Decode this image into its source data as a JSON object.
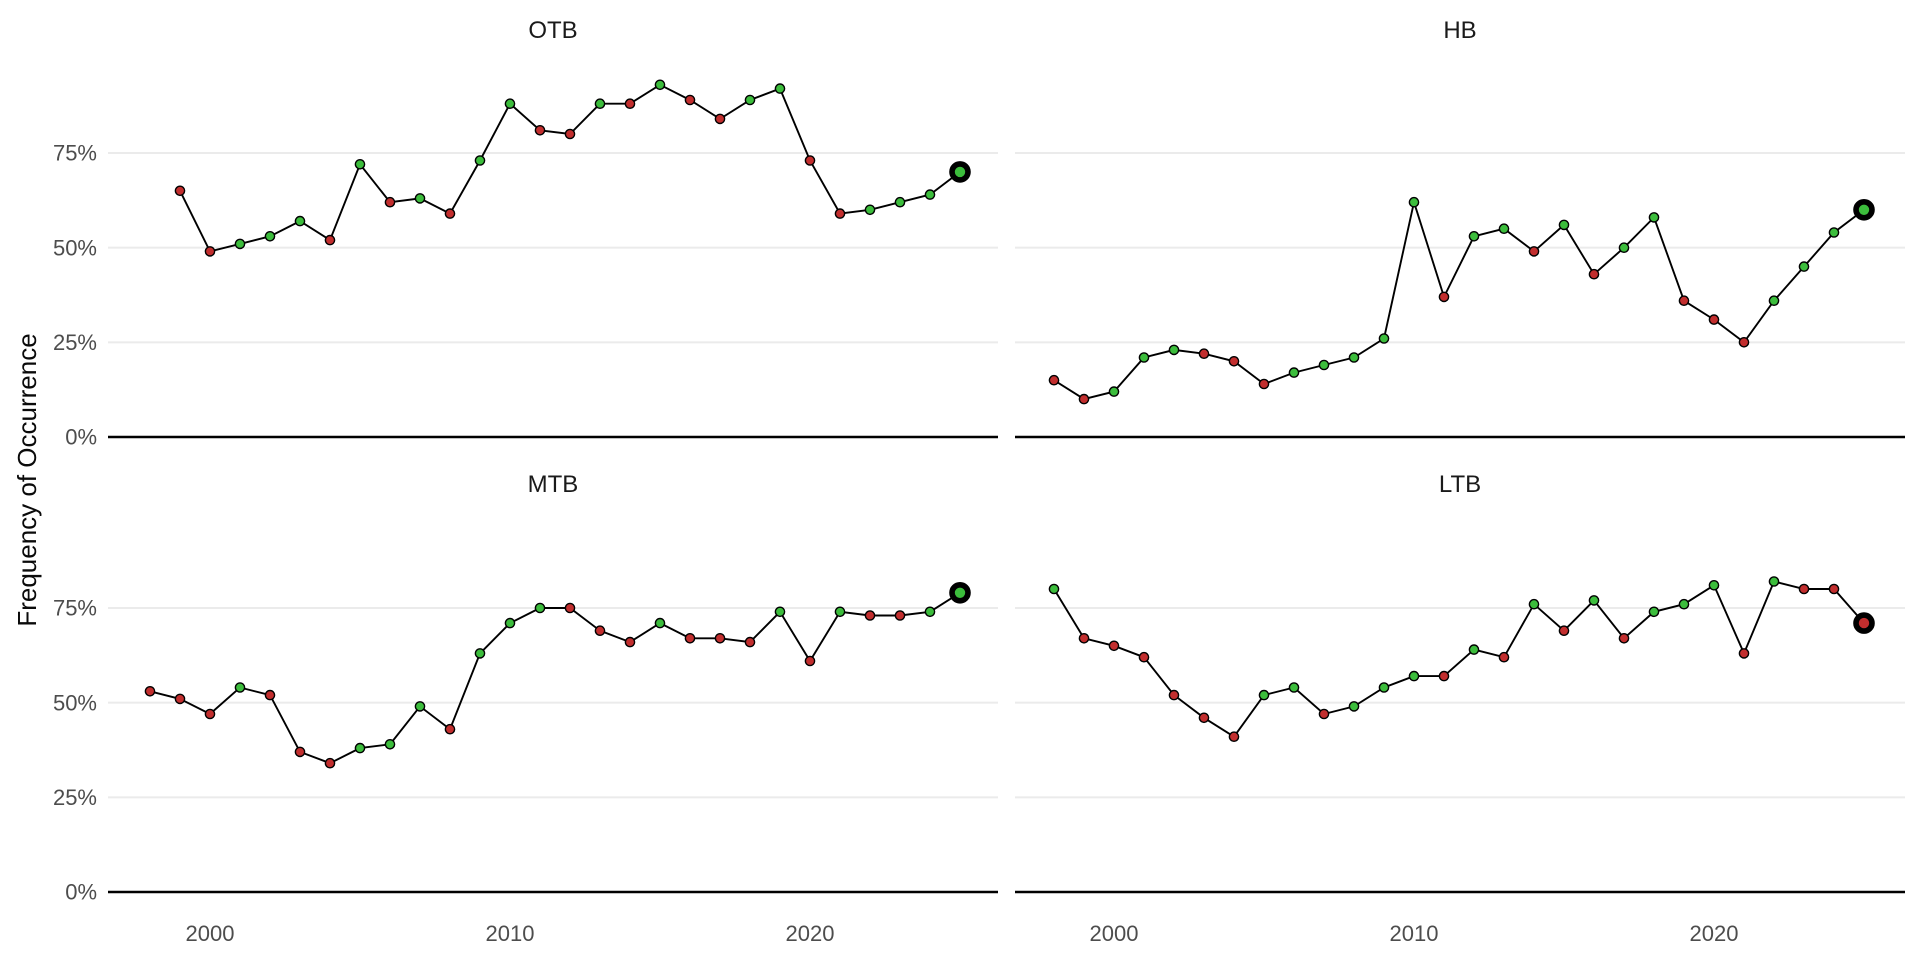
{
  "figure": {
    "ylabel": "Frequency of Occurrence",
    "y_tick_labels": [
      "0%",
      "25%",
      "50%",
      "75%"
    ],
    "x_tick_labels": [
      "2000",
      "2010",
      "2020"
    ],
    "colors": {
      "green": "#3CBD3C",
      "red": "#C22E2E",
      "line": "#000000",
      "grid": "#EBEBEB",
      "axis": "#000000",
      "point_outline": "#000000",
      "highlight_ring": "#000000",
      "tick_label": "#4D4D4D",
      "title": "#1A1A1A",
      "background": "#FFFFFF"
    },
    "legend": "none",
    "grid": "horizontal-major-only"
  },
  "chart_data": [
    {
      "type": "line",
      "title": "OTB",
      "xlabel": "",
      "ylabel": "Frequency of Occurrence",
      "x_ticks": [
        2000,
        2010,
        2020
      ],
      "y_ticks_pct": [
        0,
        25,
        50,
        75
      ],
      "ylim": [
        0,
        100
      ],
      "xlim": [
        1997,
        2026
      ],
      "highlight_last": true,
      "points": [
        [
          1999,
          65,
          "red"
        ],
        [
          2000,
          49,
          "red"
        ],
        [
          2001,
          51,
          "green"
        ],
        [
          2002,
          53,
          "green"
        ],
        [
          2003,
          57,
          "green"
        ],
        [
          2004,
          52,
          "red"
        ],
        [
          2005,
          72,
          "green"
        ],
        [
          2006,
          62,
          "red"
        ],
        [
          2007,
          63,
          "green"
        ],
        [
          2008,
          59,
          "red"
        ],
        [
          2009,
          73,
          "green"
        ],
        [
          2010,
          88,
          "green"
        ],
        [
          2011,
          81,
          "red"
        ],
        [
          2012,
          80,
          "red"
        ],
        [
          2013,
          88,
          "green"
        ],
        [
          2014,
          88,
          "red"
        ],
        [
          2015,
          93,
          "green"
        ],
        [
          2016,
          89,
          "red"
        ],
        [
          2017,
          84,
          "red"
        ],
        [
          2018,
          89,
          "green"
        ],
        [
          2019,
          92,
          "green"
        ],
        [
          2020,
          73,
          "red"
        ],
        [
          2021,
          59,
          "red"
        ],
        [
          2022,
          60,
          "green"
        ],
        [
          2023,
          62,
          "green"
        ],
        [
          2024,
          64,
          "green"
        ],
        [
          2025,
          70,
          "green"
        ]
      ]
    },
    {
      "type": "line",
      "title": "HB",
      "xlabel": "",
      "ylabel": "Frequency of Occurrence",
      "x_ticks": [
        2000,
        2010,
        2020
      ],
      "y_ticks_pct": [
        0,
        25,
        50,
        75
      ],
      "ylim": [
        0,
        100
      ],
      "xlim": [
        1997,
        2026
      ],
      "highlight_last": true,
      "points": [
        [
          1998,
          15,
          "red"
        ],
        [
          1999,
          10,
          "red"
        ],
        [
          2000,
          12,
          "green"
        ],
        [
          2001,
          21,
          "green"
        ],
        [
          2002,
          23,
          "green"
        ],
        [
          2003,
          22,
          "red"
        ],
        [
          2004,
          20,
          "red"
        ],
        [
          2005,
          14,
          "red"
        ],
        [
          2006,
          17,
          "green"
        ],
        [
          2007,
          19,
          "green"
        ],
        [
          2008,
          21,
          "green"
        ],
        [
          2009,
          26,
          "green"
        ],
        [
          2010,
          62,
          "green"
        ],
        [
          2011,
          37,
          "red"
        ],
        [
          2012,
          53,
          "green"
        ],
        [
          2013,
          55,
          "green"
        ],
        [
          2014,
          49,
          "red"
        ],
        [
          2015,
          56,
          "green"
        ],
        [
          2016,
          43,
          "red"
        ],
        [
          2017,
          50,
          "green"
        ],
        [
          2018,
          58,
          "green"
        ],
        [
          2019,
          36,
          "red"
        ],
        [
          2020,
          31,
          "red"
        ],
        [
          2021,
          25,
          "red"
        ],
        [
          2022,
          36,
          "green"
        ],
        [
          2023,
          45,
          "green"
        ],
        [
          2024,
          54,
          "green"
        ],
        [
          2025,
          60,
          "green"
        ]
      ]
    },
    {
      "type": "line",
      "title": "MTB",
      "xlabel": "",
      "ylabel": "Frequency of Occurrence",
      "x_ticks": [
        2000,
        2010,
        2020
      ],
      "y_ticks_pct": [
        0,
        25,
        50,
        75
      ],
      "ylim": [
        0,
        100
      ],
      "xlim": [
        1997,
        2026
      ],
      "highlight_last": true,
      "points": [
        [
          1998,
          53,
          "red"
        ],
        [
          1999,
          51,
          "red"
        ],
        [
          2000,
          47,
          "red"
        ],
        [
          2001,
          54,
          "green"
        ],
        [
          2002,
          52,
          "red"
        ],
        [
          2003,
          37,
          "red"
        ],
        [
          2004,
          34,
          "red"
        ],
        [
          2005,
          38,
          "green"
        ],
        [
          2006,
          39,
          "green"
        ],
        [
          2007,
          49,
          "green"
        ],
        [
          2008,
          43,
          "red"
        ],
        [
          2009,
          63,
          "green"
        ],
        [
          2010,
          71,
          "green"
        ],
        [
          2011,
          75,
          "green"
        ],
        [
          2012,
          75,
          "red"
        ],
        [
          2013,
          69,
          "red"
        ],
        [
          2014,
          66,
          "red"
        ],
        [
          2015,
          71,
          "green"
        ],
        [
          2016,
          67,
          "red"
        ],
        [
          2017,
          67,
          "red"
        ],
        [
          2018,
          66,
          "red"
        ],
        [
          2019,
          74,
          "green"
        ],
        [
          2020,
          61,
          "red"
        ],
        [
          2021,
          74,
          "green"
        ],
        [
          2022,
          73,
          "red"
        ],
        [
          2023,
          73,
          "red"
        ],
        [
          2024,
          74,
          "green"
        ],
        [
          2025,
          79,
          "green"
        ]
      ]
    },
    {
      "type": "line",
      "title": "LTB",
      "xlabel": "",
      "ylabel": "Frequency of Occurrence",
      "x_ticks": [
        2000,
        2010,
        2020
      ],
      "y_ticks_pct": [
        0,
        25,
        50,
        75
      ],
      "ylim": [
        0,
        100
      ],
      "xlim": [
        1997,
        2026
      ],
      "highlight_last": true,
      "points": [
        [
          1998,
          80,
          "green"
        ],
        [
          1999,
          67,
          "red"
        ],
        [
          2000,
          65,
          "red"
        ],
        [
          2001,
          62,
          "red"
        ],
        [
          2002,
          52,
          "red"
        ],
        [
          2003,
          46,
          "red"
        ],
        [
          2004,
          41,
          "red"
        ],
        [
          2005,
          52,
          "green"
        ],
        [
          2006,
          54,
          "green"
        ],
        [
          2007,
          47,
          "red"
        ],
        [
          2008,
          49,
          "green"
        ],
        [
          2009,
          54,
          "green"
        ],
        [
          2010,
          57,
          "green"
        ],
        [
          2011,
          57,
          "red"
        ],
        [
          2012,
          64,
          "green"
        ],
        [
          2013,
          62,
          "red"
        ],
        [
          2014,
          76,
          "green"
        ],
        [
          2015,
          69,
          "red"
        ],
        [
          2016,
          77,
          "green"
        ],
        [
          2017,
          67,
          "red"
        ],
        [
          2018,
          74,
          "green"
        ],
        [
          2019,
          76,
          "green"
        ],
        [
          2020,
          81,
          "green"
        ],
        [
          2021,
          63,
          "red"
        ],
        [
          2022,
          82,
          "green"
        ],
        [
          2023,
          80,
          "red"
        ],
        [
          2024,
          80,
          "red"
        ],
        [
          2025,
          71,
          "red"
        ]
      ]
    }
  ]
}
